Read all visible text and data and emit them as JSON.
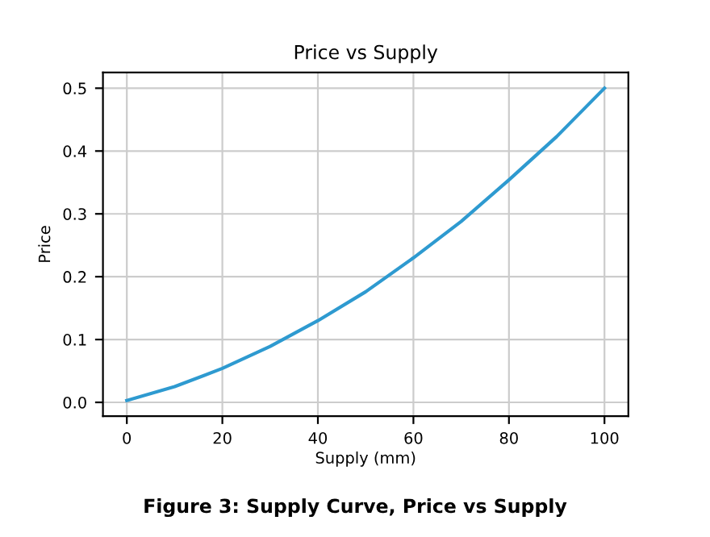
{
  "chart_data": {
    "type": "line",
    "title": "Price vs Supply",
    "xlabel": "Supply (mm)",
    "ylabel": "Price",
    "x": [
      0,
      10,
      20,
      30,
      40,
      50,
      60,
      70,
      80,
      90,
      100
    ],
    "series": [
      {
        "color": "#2e9ad0",
        "values": [
          0.003,
          0.025,
          0.054,
          0.089,
          0.13,
          0.176,
          0.23,
          0.288,
          0.354,
          0.423,
          0.5
        ]
      }
    ],
    "xlim": [
      -5,
      105
    ],
    "xticks": [
      0,
      20,
      40,
      60,
      80,
      100
    ],
    "ylim": [
      -0.022,
      0.525
    ],
    "yticks": [
      {
        "value": 0,
        "label": "0.0"
      },
      0.1,
      0.2,
      0.3,
      0.4,
      0.5
    ],
    "grid": true,
    "line_style": "solid",
    "annotations": [
      "Figure 3: Supply Curve, Price vs Supply"
    ]
  }
}
